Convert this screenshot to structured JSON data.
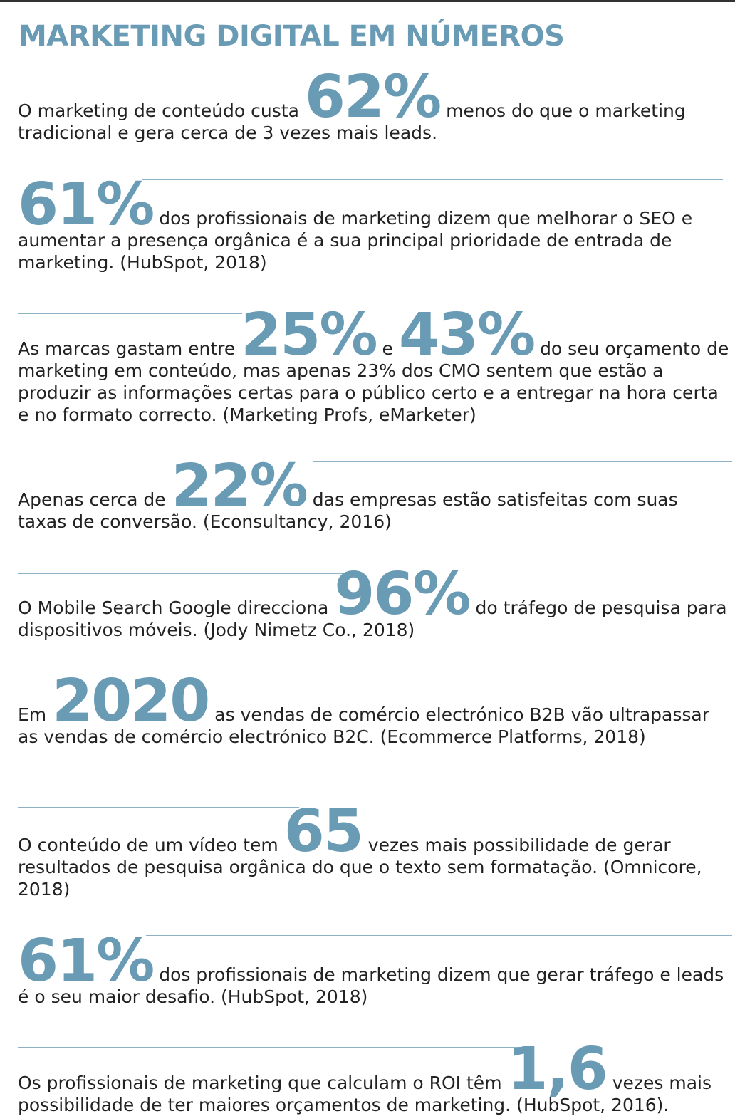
{
  "title": "MARKETING DIGITAL EM NÚMEROS",
  "items": [
    [
      {
        "text": "O marketing de conteúdo custa"
      },
      {
        "figure": "62%"
      },
      {
        "text": "menos do que o marketing tradicional e gera cerca de 3 vezes mais leads."
      }
    ],
    [
      {
        "figure": "61%"
      },
      {
        "text": "dos profissionais de marketing dizem que melhorar o SEO e aumentar a presença orgânica é a sua principal prioridade de entrada de marketing. (HubSpot, 2018)"
      }
    ],
    [
      {
        "text": "As marcas gastam entre"
      },
      {
        "figure": "25%"
      },
      {
        "text": "e"
      },
      {
        "figure": "43%"
      },
      {
        "text": "do seu orçamento de marketing em conteúdo, mas apenas 23% dos CMO sentem que estão a produzir as informações certas para o público certo e a entregar na hora certa e no formato correcto. (Marketing Profs, eMarketer)"
      }
    ],
    [
      {
        "text": "Apenas cerca de"
      },
      {
        "figure": "22%"
      },
      {
        "text": "das empresas estão satisfeitas com suas taxas de conversão. (Econsultancy, 2016)"
      }
    ],
    [
      {
        "text": "O Mobile Search Google direcciona"
      },
      {
        "figure": "96%"
      },
      {
        "text": "do tráfego de pesquisa para dispositivos móveis. (Jody Nimetz Co., 2018)"
      }
    ],
    [
      {
        "text": "Em"
      },
      {
        "figure": "2020"
      },
      {
        "text": "as vendas de comércio electrónico B2B vão ultrapassar as vendas de comércio electrónico B2C. (Ecommerce Platforms, 2018)"
      }
    ],
    [
      {
        "text": "O conteúdo de um vídeo tem"
      },
      {
        "figure": "65"
      },
      {
        "text": "vezes mais possibilidade de gerar resultados de pesquisa orgânica do que o texto sem formatação. (Omnicore, 2018)"
      }
    ],
    [
      {
        "figure": "61%"
      },
      {
        "text": "dos profissionais de marketing dizem que gerar tráfego e leads é o seu maior desafio. (HubSpot, 2018)"
      }
    ],
    [
      {
        "text": "Os profissionais de marketing que calculam o ROI têm"
      },
      {
        "figure": "1,6"
      },
      {
        "text": "vezes mais possibilidade de ter maiores orçamentos de marketing. (HubSpot, 2016)."
      }
    ]
  ]
}
